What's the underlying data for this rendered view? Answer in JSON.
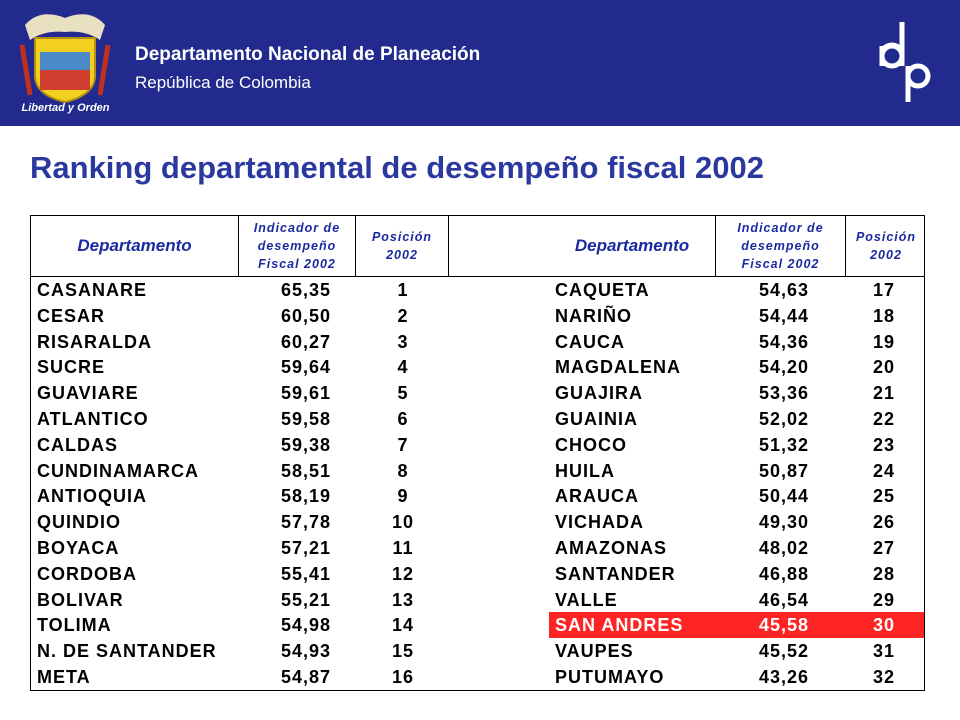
{
  "header": {
    "org": "Departamento Nacional de Planeación",
    "country": "República de Colombia",
    "motto": "Libertad y Orden"
  },
  "title": "Ranking departamental de desempeño fiscal 2002",
  "table": {
    "header": [
      "Departamento",
      [
        "Indicador de",
        "desempeño",
        "Fiscal 2002"
      ],
      [
        "Posición",
        "2002"
      ],
      "Departamento",
      [
        "Indicador de",
        "desempeño",
        "Fiscal 2002"
      ],
      [
        "Posición",
        "2002"
      ]
    ],
    "rows": [
      [
        "CASANARE",
        "65,35",
        "1",
        "CAQUETA",
        "54,63",
        "17"
      ],
      [
        "CESAR",
        "60,50",
        "2",
        "NARIÑO",
        "54,44",
        "18"
      ],
      [
        "RISARALDA",
        "60,27",
        "3",
        "CAUCA",
        "54,36",
        "19"
      ],
      [
        "SUCRE",
        "59,64",
        "4",
        "MAGDALENA",
        "54,20",
        "20"
      ],
      [
        "GUAVIARE",
        "59,61",
        "5",
        "GUAJIRA",
        "53,36",
        "21"
      ],
      [
        "ATLANTICO",
        "59,58",
        "6",
        "GUAINIA",
        "52,02",
        "22"
      ],
      [
        "CALDAS",
        "59,38",
        "7",
        "CHOCO",
        "51,32",
        "23"
      ],
      [
        "CUNDINAMARCA",
        "58,51",
        "8",
        "HUILA",
        "50,87",
        "24"
      ],
      [
        "ANTIOQUIA",
        "58,19",
        "9",
        "ARAUCA",
        "50,44",
        "25"
      ],
      [
        "QUINDIO",
        "57,78",
        "10",
        "VICHADA",
        "49,30",
        "26"
      ],
      [
        "BOYACA",
        "57,21",
        "11",
        "AMAZONAS",
        "48,02",
        "27"
      ],
      [
        "CORDOBA",
        "55,41",
        "12",
        "SANTANDER",
        "46,88",
        "28"
      ],
      [
        "BOLIVAR",
        "55,21",
        "13",
        "VALLE",
        "46,54",
        "29"
      ],
      [
        "TOLIMA",
        "54,98",
        "14",
        "SAN ANDRES",
        "45,58",
        "30"
      ],
      [
        "N. DE SANTANDER",
        "54,93",
        "15",
        "VAUPES",
        "45,52",
        "31"
      ],
      [
        "META",
        "54,87",
        "16",
        "PUTUMAYO",
        "43,26",
        "32"
      ]
    ],
    "highlighted": {
      "row": 13,
      "half": 1,
      "color": "#ff2424"
    }
  }
}
